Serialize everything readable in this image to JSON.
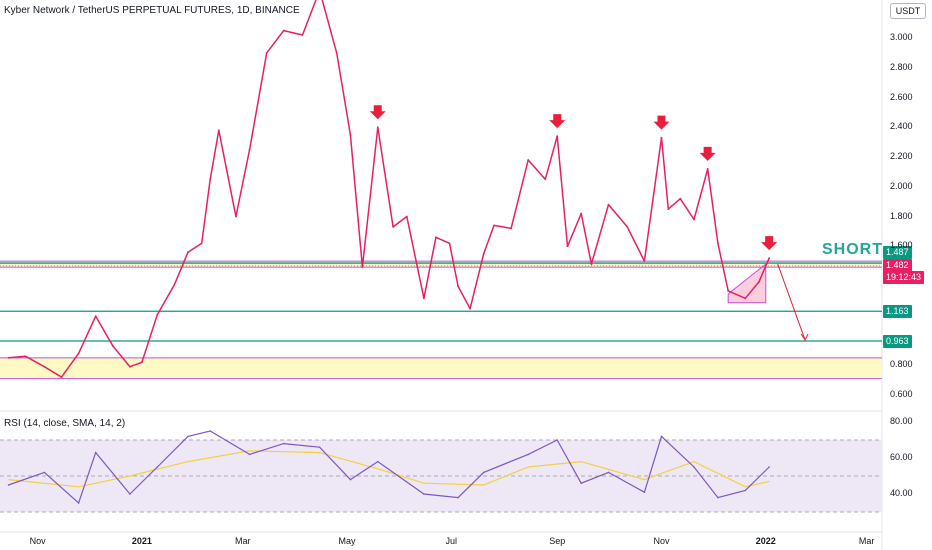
{
  "title": "Kyber Network / TetherUS PERPETUAL FUTURES, 1D, BINANCE",
  "currency_label": "USDT",
  "short_label": "SHORT",
  "rsi_title": "RSI (14, close, SMA, 14, 2)",
  "price_tags": {
    "level": "1.487",
    "last": "1.482",
    "countdown": "19:12:43",
    "support_1": "1.163",
    "support_2": "0.963"
  },
  "colors": {
    "price_line": "#e91e63",
    "support_line": "#089981",
    "zone_fill": "#fff9c4",
    "zone_border": "#c74ede",
    "rsi_line": "#7e57c2",
    "rsi_ma": "#f4d03f",
    "rsi_band": "#ede7f6",
    "arrow": "#e91e3c",
    "short_text": "#26a69a"
  },
  "chart_data": [
    {
      "type": "line",
      "title": "Kyber Network / TetherUS PERPETUAL FUTURES, 1D, BINANCE",
      "series": [
        {
          "x": [
            "2020-10-15",
            "2020-10-25",
            "2020-11-05",
            "2020-11-15",
            "2020-11-25",
            "2020-12-05",
            "2020-12-15",
            "2020-12-25",
            "2021-01-01",
            "2021-01-10",
            "2021-01-20",
            "2021-01-28",
            "2021-02-05",
            "2021-02-10",
            "2021-02-15",
            "2021-02-25",
            "2021-03-05",
            "2021-03-15",
            "2021-03-25",
            "2021-04-05",
            "2021-04-15",
            "2021-04-25",
            "2021-05-03",
            "2021-05-10",
            "2021-05-19",
            "2021-05-28",
            "2021-06-05",
            "2021-06-15",
            "2021-06-22",
            "2021-06-30",
            "2021-07-05",
            "2021-07-12",
            "2021-07-20",
            "2021-07-26",
            "2021-08-05",
            "2021-08-15",
            "2021-08-25",
            "2021-09-01",
            "2021-09-07",
            "2021-09-15",
            "2021-09-21",
            "2021-10-01",
            "2021-10-12",
            "2021-10-22",
            "2021-11-01",
            "2021-11-05",
            "2021-11-12",
            "2021-11-20",
            "2021-11-28",
            "2021-12-04",
            "2021-12-10",
            "2021-12-20",
            "2021-12-28",
            "2022-01-03"
          ],
          "values": [
            0.85,
            0.86,
            0.79,
            0.72,
            0.88,
            1.13,
            0.93,
            0.79,
            0.82,
            1.14,
            1.34,
            1.56,
            1.62,
            2.05,
            2.38,
            1.8,
            2.25,
            2.9,
            3.05,
            3.02,
            3.32,
            2.9,
            2.35,
            1.46,
            2.4,
            1.73,
            1.8,
            1.25,
            1.66,
            1.62,
            1.33,
            1.18,
            1.55,
            1.74,
            1.72,
            2.18,
            2.05,
            2.34,
            1.6,
            1.82,
            1.48,
            1.88,
            1.73,
            1.5,
            2.33,
            1.85,
            1.92,
            1.78,
            2.12,
            1.62,
            1.3,
            1.25,
            1.36,
            1.52
          ]
        }
      ],
      "ylim": [
        0.5,
        3.3
      ],
      "yticks": [
        "0.600",
        "0.800",
        "1.000",
        "1.200",
        "1.400",
        "1.600",
        "1.800",
        "2.000",
        "2.200",
        "2.400",
        "2.600",
        "2.800",
        "3.000"
      ],
      "xticks": [
        "Nov",
        "2021",
        "Mar",
        "May",
        "Jul",
        "Sep",
        "Nov",
        "2022",
        "Mar"
      ],
      "horizontal_levels": [
        1.487,
        1.163,
        0.963
      ],
      "zones": [
        [
          1.46,
          1.5
        ],
        [
          0.71,
          0.85
        ]
      ],
      "markers": [
        {
          "x": "2021-05-19",
          "y": 2.4,
          "shape": "down-arrow"
        },
        {
          "x": "2021-09-01",
          "y": 2.34,
          "shape": "down-arrow"
        },
        {
          "x": "2021-11-01",
          "y": 2.33,
          "shape": "down-arrow"
        },
        {
          "x": "2021-11-28",
          "y": 2.12,
          "shape": "down-arrow"
        },
        {
          "x": "2022-01-03",
          "y": 1.52,
          "shape": "down-arrow"
        }
      ]
    },
    {
      "type": "line",
      "title": "RSI (14, close, SMA, 14, 2)",
      "series": [
        {
          "x": [
            "2020-10-15",
            "2020-11-05",
            "2020-11-25",
            "2020-12-05",
            "2020-12-25",
            "2021-01-10",
            "2021-01-28",
            "2021-02-10",
            "2021-03-05",
            "2021-03-25",
            "2021-04-15",
            "2021-05-03",
            "2021-05-19",
            "2021-06-15",
            "2021-07-05",
            "2021-07-20",
            "2021-08-15",
            "2021-09-01",
            "2021-09-15",
            "2021-10-01",
            "2021-10-22",
            "2021-11-01",
            "2021-11-20",
            "2021-12-04",
            "2021-12-20",
            "2022-01-03"
          ],
          "values": [
            45,
            52,
            35,
            63,
            40,
            55,
            72,
            75,
            62,
            68,
            66,
            48,
            58,
            40,
            38,
            52,
            62,
            70,
            46,
            52,
            41,
            72,
            55,
            38,
            42,
            55
          ]
        },
        {
          "x": [
            "2020-10-15",
            "2020-11-25",
            "2020-12-25",
            "2021-01-28",
            "2021-03-05",
            "2021-04-15",
            "2021-05-19",
            "2021-06-15",
            "2021-07-20",
            "2021-08-15",
            "2021-09-15",
            "2021-10-22",
            "2021-11-20",
            "2021-12-20",
            "2022-01-03"
          ],
          "values": [
            48,
            44,
            50,
            58,
            64,
            63,
            54,
            46,
            45,
            55,
            58,
            48,
            58,
            44,
            47
          ]
        }
      ],
      "ylim": [
        20,
        85
      ],
      "yticks": [
        "40.00",
        "60.00",
        "80.00"
      ],
      "bands": [
        30,
        50,
        70
      ]
    }
  ]
}
